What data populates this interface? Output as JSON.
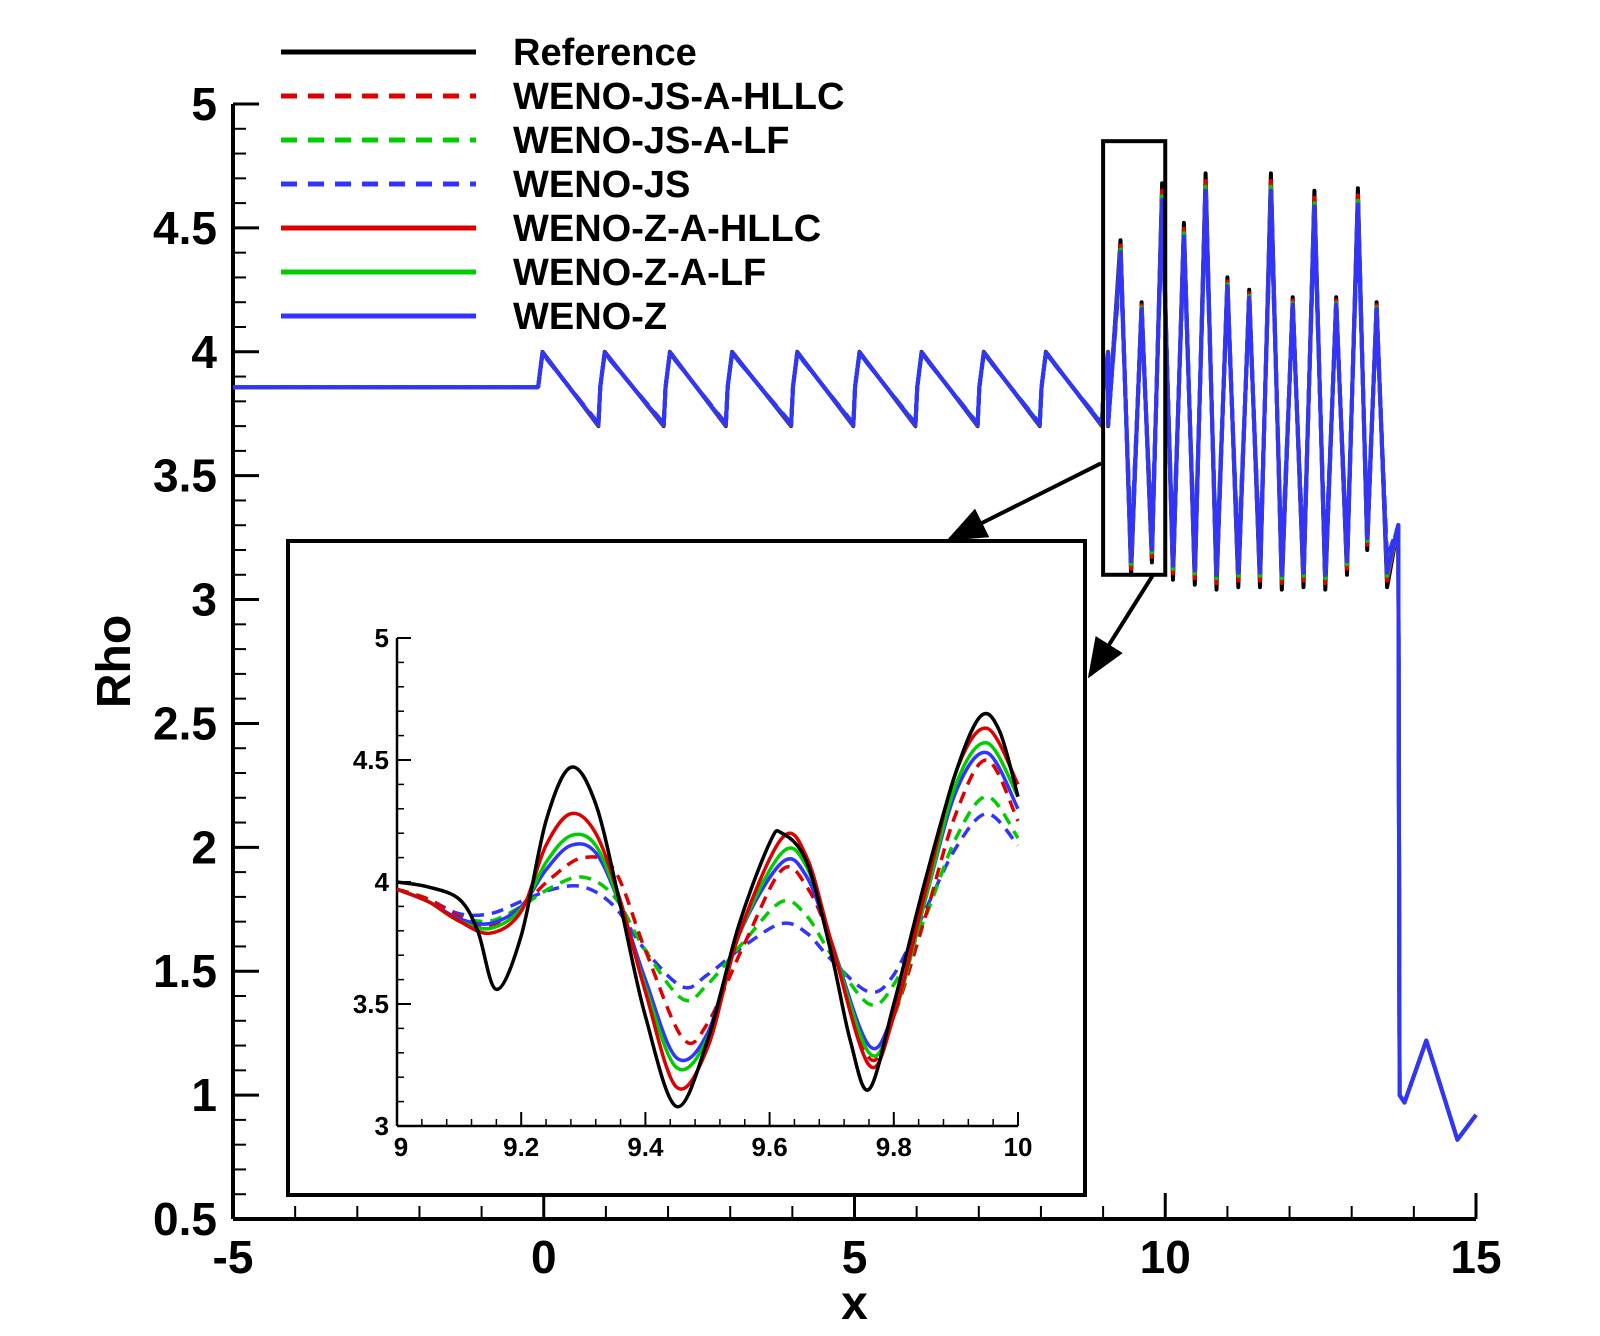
{
  "chart_data": [
    {
      "type": "line",
      "xlabel": "x",
      "ylabel": "Rho",
      "xlim": [
        -5,
        15
      ],
      "ylim": [
        0.5,
        5
      ],
      "x_ticks": [
        -5,
        0,
        5,
        10,
        15
      ],
      "x_tick_labels": [
        "-5",
        "0",
        "5",
        "10",
        "15"
      ],
      "y_ticks": [
        0.5,
        1,
        1.5,
        2,
        2.5,
        3,
        3.5,
        4,
        4.5,
        5
      ],
      "y_tick_labels": [
        "0.5",
        "1",
        "1.5",
        "2",
        "2.5",
        "3",
        "3.5",
        "4",
        "4.5",
        "5"
      ],
      "legend_position": "top-left",
      "series": [
        {
          "name": "Reference",
          "color": "#000000",
          "style": "solid",
          "amp_scale": 1.0,
          "offset": 0.0
        },
        {
          "name": "WENO-JS-A-HLLC",
          "color": "#dd0000",
          "style": "dashed",
          "amp_scale": 0.78,
          "offset": 0.0
        },
        {
          "name": "WENO-JS-A-LF",
          "color": "#00cc00",
          "style": "dashed",
          "amp_scale": 0.7,
          "offset": 0.0
        },
        {
          "name": "WENO-JS",
          "color": "#3333ff",
          "style": "dashed",
          "amp_scale": 0.64,
          "offset": 0.0
        },
        {
          "name": "WENO-Z-A-HLLC",
          "color": "#dd0000",
          "style": "solid",
          "amp_scale": 0.92,
          "offset": 0.0
        },
        {
          "name": "WENO-Z-A-LF",
          "color": "#00cc00",
          "style": "solid",
          "amp_scale": 0.86,
          "offset": 0.0
        },
        {
          "name": "WENO-Z",
          "color": "#3333ff",
          "style": "solid",
          "amp_scale": 0.82,
          "offset": 0.0
        }
      ],
      "profile": {
        "left_state": [
          -5,
          -0.1,
          3.857
        ],
        "sawtooth_peaks": [
          -0.1,
          0.9,
          1.95,
          2.95,
          4.0,
          5.0,
          6.0,
          7.0,
          8.0,
          9.0
        ],
        "sawtooth_high": 4.0,
        "sawtooth_low": 3.7,
        "oscillation_region": [
          9.0,
          13.75
        ],
        "oscillation_peaks": [
          9.28,
          9.62,
          9.95,
          10.3,
          10.65,
          11.0,
          11.35,
          11.7,
          12.05,
          12.4,
          12.75,
          13.1,
          13.4
        ],
        "oscillation_peak_values": [
          4.45,
          4.2,
          4.68,
          4.52,
          4.72,
          4.3,
          4.25,
          4.72,
          4.22,
          4.65,
          4.22,
          4.66,
          4.2
        ],
        "oscillation_trough_values": [
          3.1,
          3.15,
          3.08,
          3.06,
          3.04,
          3.05,
          3.05,
          3.04,
          3.05,
          3.04,
          3.1,
          3.2,
          3.05
        ],
        "shock_x": 13.75,
        "post_shock": [
          13.8,
          15.0
        ],
        "post_shock_values": [
          0.97,
          1.22,
          0.82,
          0.92
        ]
      }
    },
    {
      "type": "line",
      "inset": true,
      "xlim": [
        9,
        10
      ],
      "ylim": [
        3,
        5
      ],
      "x_ticks": [
        9,
        9.2,
        9.4,
        9.6,
        9.8,
        10
      ],
      "x_tick_labels": [
        "9",
        "9.2",
        "9.4",
        "9.6",
        "9.8",
        "10"
      ],
      "y_ticks": [
        3,
        3.5,
        4,
        4.5,
        5
      ],
      "y_tick_labels": [
        "3",
        "3.5",
        "4",
        "4.5",
        "5"
      ],
      "series": [
        {
          "name": "Reference",
          "color": "#000000",
          "style": "solid",
          "x": [
            9.0,
            9.05,
            9.1,
            9.13,
            9.16,
            9.2,
            9.24,
            9.28,
            9.32,
            9.36,
            9.4,
            9.45,
            9.5,
            9.55,
            9.6,
            9.62,
            9.66,
            9.7,
            9.73,
            9.76,
            9.8,
            9.85,
            9.9,
            9.94,
            9.97,
            10.0
          ],
          "y": [
            4.0,
            3.98,
            3.93,
            3.8,
            3.56,
            3.78,
            4.25,
            4.47,
            4.32,
            3.9,
            3.45,
            3.08,
            3.35,
            3.82,
            4.16,
            4.2,
            4.08,
            3.7,
            3.35,
            3.15,
            3.5,
            4.0,
            4.45,
            4.68,
            4.62,
            4.35
          ]
        },
        {
          "name": "WENO-JS-A-HLLC",
          "color": "#dd0000",
          "style": "dashed",
          "x": [
            9.0,
            9.05,
            9.1,
            9.15,
            9.2,
            9.25,
            9.3,
            9.35,
            9.4,
            9.46,
            9.5,
            9.56,
            9.62,
            9.66,
            9.7,
            9.76,
            9.8,
            9.85,
            9.9,
            9.95,
            10.0
          ],
          "y": [
            3.97,
            3.93,
            3.86,
            3.82,
            3.9,
            4.02,
            4.1,
            4.05,
            3.72,
            3.36,
            3.42,
            3.75,
            4.05,
            3.98,
            3.75,
            3.28,
            3.45,
            3.85,
            4.28,
            4.5,
            4.25
          ]
        },
        {
          "name": "WENO-JS-A-LF",
          "color": "#00cc00",
          "style": "dashed",
          "x": [
            9.0,
            9.05,
            9.1,
            9.15,
            9.2,
            9.25,
            9.3,
            9.35,
            9.4,
            9.46,
            9.5,
            9.56,
            9.62,
            9.66,
            9.7,
            9.76,
            9.8,
            9.85,
            9.9,
            9.95,
            10.0
          ],
          "y": [
            3.97,
            3.93,
            3.86,
            3.84,
            3.9,
            3.98,
            4.02,
            3.94,
            3.72,
            3.52,
            3.58,
            3.76,
            3.92,
            3.86,
            3.7,
            3.5,
            3.58,
            3.85,
            4.18,
            4.35,
            4.18
          ]
        },
        {
          "name": "WENO-JS",
          "color": "#3333ff",
          "style": "dashed",
          "x": [
            9.0,
            9.05,
            9.1,
            9.15,
            9.2,
            9.25,
            9.3,
            9.35,
            9.4,
            9.46,
            9.5,
            9.56,
            9.62,
            9.66,
            9.7,
            9.76,
            9.8,
            9.85,
            9.9,
            9.95,
            10.0
          ],
          "y": [
            3.97,
            3.93,
            3.87,
            3.87,
            3.92,
            3.97,
            3.98,
            3.9,
            3.72,
            3.57,
            3.62,
            3.74,
            3.83,
            3.79,
            3.68,
            3.55,
            3.62,
            3.88,
            4.14,
            4.28,
            4.15
          ]
        },
        {
          "name": "WENO-Z-A-HLLC",
          "color": "#dd0000",
          "style": "solid",
          "x": [
            9.0,
            9.05,
            9.1,
            9.15,
            9.2,
            9.24,
            9.28,
            9.32,
            9.36,
            9.4,
            9.45,
            9.5,
            9.55,
            9.62,
            9.66,
            9.7,
            9.76,
            9.8,
            9.85,
            9.9,
            9.95,
            10.0
          ],
          "y": [
            3.97,
            3.92,
            3.84,
            3.79,
            3.88,
            4.15,
            4.28,
            4.2,
            3.92,
            3.55,
            3.16,
            3.32,
            3.78,
            4.18,
            4.1,
            3.75,
            3.25,
            3.45,
            3.95,
            4.45,
            4.63,
            4.4
          ]
        },
        {
          "name": "WENO-Z-A-LF",
          "color": "#00cc00",
          "style": "solid",
          "x": [
            9.0,
            9.05,
            9.1,
            9.15,
            9.2,
            9.24,
            9.28,
            9.32,
            9.36,
            9.4,
            9.45,
            9.5,
            9.55,
            9.62,
            9.66,
            9.7,
            9.76,
            9.8,
            9.85,
            9.9,
            9.95,
            10.0
          ],
          "y": [
            3.97,
            3.92,
            3.84,
            3.81,
            3.89,
            4.08,
            4.19,
            4.15,
            3.9,
            3.57,
            3.24,
            3.36,
            3.78,
            4.12,
            4.06,
            3.75,
            3.3,
            3.45,
            3.92,
            4.4,
            4.57,
            4.35
          ]
        },
        {
          "name": "WENO-Z",
          "color": "#3333ff",
          "style": "solid",
          "x": [
            9.0,
            9.05,
            9.1,
            9.15,
            9.2,
            9.24,
            9.28,
            9.32,
            9.36,
            9.4,
            9.45,
            9.5,
            9.55,
            9.62,
            9.66,
            9.7,
            9.76,
            9.8,
            9.85,
            9.9,
            9.95,
            10.0
          ],
          "y": [
            3.97,
            3.92,
            3.85,
            3.83,
            3.9,
            4.05,
            4.15,
            4.12,
            3.9,
            3.6,
            3.28,
            3.38,
            3.78,
            4.08,
            4.02,
            3.75,
            3.33,
            3.47,
            3.92,
            4.37,
            4.53,
            4.3
          ]
        }
      ]
    }
  ]
}
